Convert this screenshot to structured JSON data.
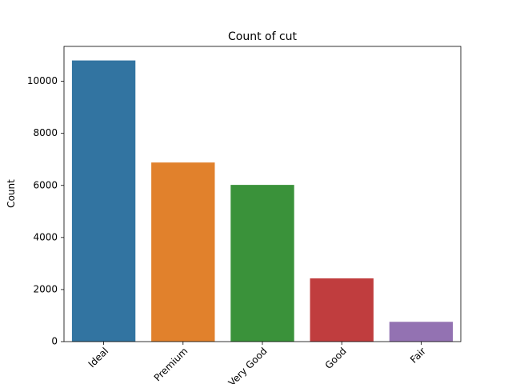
{
  "chart_data": {
    "type": "bar",
    "title": "Count of cut",
    "xlabel": "",
    "ylabel": "Count",
    "categories": [
      "Ideal",
      "Premium",
      "Very Good",
      "Good",
      "Fair"
    ],
    "values": [
      10800,
      6880,
      6020,
      2430,
      760
    ],
    "colors": [
      "#3274a1",
      "#e1812c",
      "#3a923a",
      "#c03d3e",
      "#9372b2"
    ],
    "ylim": [
      0,
      11340
    ],
    "yticks": [
      0,
      2000,
      4000,
      6000,
      8000,
      10000
    ],
    "grid": false,
    "legend": "none",
    "x_tick_rotation_degrees": 45
  }
}
